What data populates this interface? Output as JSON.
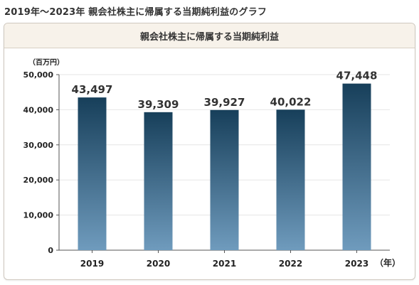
{
  "page": {
    "title": "2019年～2023年 親会社株主に帰属する当期純利益のグラフ"
  },
  "panel": {
    "header": "親会社株主に帰属する当期純利益"
  },
  "chart_data": {
    "type": "bar",
    "title": "親会社株主に帰属する当期純利益",
    "y_unit_label": "（百万円）",
    "x_unit_label": "（年）",
    "categories": [
      "2019",
      "2020",
      "2021",
      "2022",
      "2023"
    ],
    "values": [
      43497,
      39309,
      39927,
      40022,
      47448
    ],
    "value_labels": [
      "43,497",
      "39,309",
      "39,927",
      "40,022",
      "47,448"
    ],
    "ylim": [
      0,
      50000
    ],
    "yticks": [
      0,
      10000,
      20000,
      30000,
      40000,
      50000
    ],
    "ytick_labels": [
      "0",
      "10,000",
      "20,000",
      "30,000",
      "40,000",
      "50,000"
    ],
    "grid": true,
    "colors": {
      "bar_top": "#173f5a",
      "bar_bottom": "#6f9bbd",
      "grid": "#e6e6e6",
      "axis": "#555555"
    }
  }
}
